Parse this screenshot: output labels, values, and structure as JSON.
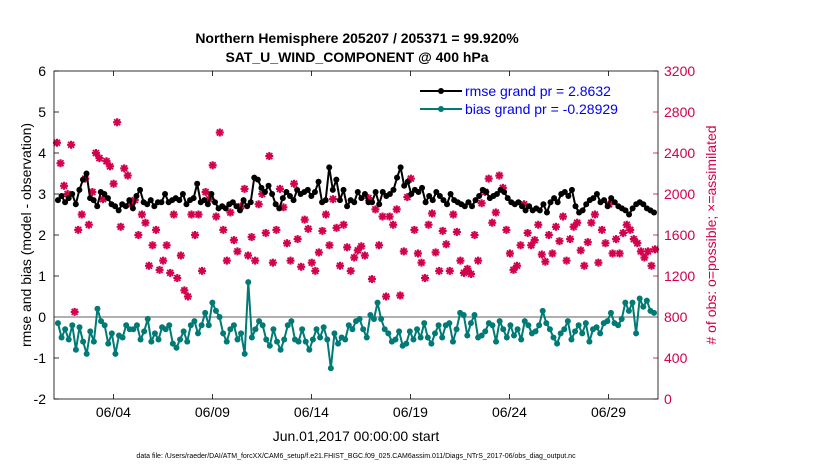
{
  "chart_data": {
    "type": "line",
    "title_line1": "Northern Hemisphere 205207 / 205371 = 99.920%",
    "title_line2": "SAT_U_WIND_COMPONENT @ 400 hPa",
    "ylabel_left": "rmse and bias (model - observation)",
    "ylabel_right": "# of obs: o=possible; ×=assimilated",
    "xlabel": "Jun.01,2017 00:00:00 start",
    "footer": "data file: /Users/raeder/DAI/ATM_forcXX/CAM6_setup/f.e21.FHIST_BGC.f09_025.CAM6assim.011/Diags_NTrS_2017-06/obs_diag_output.nc",
    "ylim_left": [
      -2,
      6
    ],
    "yticks_left": [
      "-2",
      "-1",
      "0",
      "1",
      "2",
      "3",
      "4",
      "5",
      "6"
    ],
    "ylim_right": [
      0,
      3200
    ],
    "yticks_right": [
      "0",
      "400",
      "800",
      "1200",
      "1600",
      "2000",
      "2400",
      "2800",
      "3200"
    ],
    "xlim_days": [
      0,
      30.5
    ],
    "xtick_days": [
      3,
      8,
      13,
      18,
      23,
      28
    ],
    "xtick_labels": [
      "06/04",
      "06/09",
      "06/14",
      "06/19",
      "06/24",
      "06/29"
    ],
    "x_step_days": 0.25,
    "series": [
      {
        "name": "rmse grand pr = 2.8632",
        "color": "#000000",
        "values": [
          2.85,
          2.95,
          2.8,
          2.9,
          3.0,
          2.75,
          3.1,
          3.35,
          3.5,
          2.9,
          2.85,
          2.7,
          3.05,
          3.0,
          2.9,
          2.75,
          2.7,
          2.6,
          2.75,
          2.7,
          2.85,
          2.65,
          2.95,
          3.1,
          2.8,
          2.75,
          2.85,
          2.7,
          2.8,
          2.8,
          3.0,
          2.8,
          2.85,
          2.9,
          2.85,
          3.0,
          2.75,
          2.85,
          2.9,
          3.25,
          2.8,
          2.85,
          2.75,
          3.0,
          2.8,
          2.65,
          2.7,
          2.65,
          2.75,
          2.8,
          2.7,
          2.6,
          2.85,
          2.7,
          2.8,
          3.4,
          3.35,
          3.15,
          3.05,
          3.2,
          3.0,
          2.75,
          2.65,
          2.9,
          3.05,
          2.95,
          2.85,
          3.1,
          3.0,
          3.05,
          3.1,
          2.95,
          3.05,
          3.3,
          2.8,
          2.85,
          3.65,
          3.1,
          3.35,
          2.85,
          3.1,
          2.7,
          2.85,
          2.8,
          3.05,
          2.9,
          3.0,
          2.8,
          2.8,
          3.05,
          2.75,
          3.05,
          2.95,
          3.0,
          3.1,
          3.4,
          3.65,
          3.2,
          3.3,
          3.0,
          3.1,
          3.05,
          3.15,
          2.8,
          2.95,
          2.85,
          3.05,
          2.95,
          2.85,
          2.75,
          3.0,
          2.85,
          2.8,
          2.75,
          2.7,
          2.8,
          2.7,
          2.85,
          2.95,
          3.1,
          3.05,
          2.9,
          2.95,
          3.0,
          3.1,
          3.05,
          2.9,
          2.8,
          2.75,
          2.8,
          2.7,
          2.6,
          2.7,
          2.6,
          2.65,
          2.6,
          2.75,
          2.55,
          2.8,
          2.9,
          2.8,
          3.0,
          3.05,
          2.95,
          3.1,
          2.7,
          2.55,
          2.6,
          2.75,
          2.85,
          2.9,
          3.0,
          2.8,
          2.85,
          2.7,
          2.9,
          2.8,
          2.7,
          2.65,
          2.6,
          2.5,
          2.65,
          2.75,
          2.8,
          2.75,
          2.65,
          2.6,
          2.55
        ]
      },
      {
        "name": "bias grand pr = -0.28929",
        "color": "#007a75",
        "values": [
          -0.15,
          -0.5,
          -0.3,
          -0.55,
          -0.2,
          -0.8,
          -0.25,
          -0.6,
          -0.9,
          -0.35,
          -0.6,
          0.2,
          -0.1,
          -0.2,
          -0.65,
          -0.4,
          -0.9,
          -0.45,
          -0.5,
          -0.2,
          -0.3,
          -0.3,
          -0.2,
          -0.55,
          -0.35,
          -0.05,
          -0.6,
          -0.4,
          -0.55,
          -0.25,
          -0.3,
          -0.2,
          -0.65,
          -0.75,
          -0.55,
          -0.35,
          -0.6,
          -0.2,
          -0.1,
          -0.4,
          -0.2,
          0.1,
          -0.2,
          0.35,
          0.15,
          0.0,
          -0.4,
          -0.6,
          -0.3,
          -0.2,
          -0.55,
          -0.4,
          -0.9,
          0.85,
          -0.5,
          -0.3,
          -0.1,
          -0.2,
          -0.55,
          -0.7,
          -0.3,
          -0.6,
          -0.8,
          -0.55,
          -0.2,
          -0.1,
          -0.55,
          -0.6,
          -0.3,
          -0.6,
          -0.8,
          -0.55,
          -0.3,
          -0.5,
          -0.25,
          -0.55,
          -1.25,
          -0.4,
          -0.65,
          -0.5,
          -0.55,
          -0.2,
          -0.3,
          -0.1,
          -0.05,
          -0.3,
          -0.5,
          0.05,
          -0.05,
          0.35,
          -0.05,
          -0.3,
          -0.4,
          -0.6,
          -0.55,
          -0.35,
          -0.7,
          -0.65,
          -0.35,
          -0.55,
          -0.3,
          -0.5,
          -0.15,
          -0.5,
          -0.65,
          -0.4,
          -0.2,
          -0.5,
          -0.2,
          -0.15,
          -0.6,
          -0.3,
          0.1,
          0.05,
          -0.45,
          -0.15,
          0.05,
          -0.5,
          -0.45,
          -0.35,
          -0.15,
          -0.2,
          -0.6,
          -0.1,
          -0.3,
          -0.5,
          -0.2,
          -0.45,
          -0.3,
          -0.55,
          -0.1,
          -0.2,
          -0.4,
          -0.35,
          -0.2,
          0.15,
          -0.15,
          -0.3,
          -0.5,
          -0.65,
          -0.4,
          -0.3,
          -0.1,
          -0.55,
          -0.35,
          -0.2,
          -0.4,
          -0.15,
          -0.6,
          -0.3,
          -0.25,
          -0.4,
          -0.15,
          -0.1,
          0.1,
          -0.15,
          -0.2,
          -0.05,
          0.35,
          0.15,
          0.35,
          -0.4,
          0.45,
          0.25,
          0.4,
          0.15,
          0.1
        ]
      }
    ],
    "possible": {
      "name": "possible",
      "color": "#d2004d",
      "values": []
    },
    "assimilated": {
      "name": "assimilated",
      "color": "#d2004d",
      "values": [
        2500,
        2300,
        2080,
        2000,
        2480,
        850,
        1650,
        1800,
        2150,
        1700,
        2020,
        2400,
        2350,
        1950,
        2320,
        2270,
        2100,
        2700,
        1680,
        2250,
        2180,
        1900,
        1940,
        1600,
        1800,
        1720,
        1300,
        1500,
        1650,
        1260,
        1350,
        1500,
        1230,
        1800,
        1180,
        1400,
        1060,
        1000,
        1800,
        1600,
        1800,
        1250,
        2020,
        1950,
        2280,
        1780,
        2600,
        1650,
        1350,
        1820,
        1550,
        1440,
        1880,
        2050,
        1400,
        1580,
        1350,
        1900,
        2000,
        1620,
        2370,
        1330,
        1650,
        2050,
        1870,
        1520,
        1350,
        2100,
        1560,
        1290,
        1750,
        1660,
        1330,
        1250,
        1430,
        1640,
        1800,
        1500,
        1950,
        1670,
        1300,
        1700,
        1480,
        1250,
        1380,
        1450,
        1490,
        1400,
        1960,
        1170,
        1850,
        1500,
        1780,
        1000,
        1780,
        1700,
        1850,
        1010,
        1440,
        1970,
        2150,
        1650,
        1420,
        1330,
        1180,
        1700,
        1810,
        1430,
        1250,
        1640,
        1510,
        1250,
        1800,
        1630,
        1350,
        1230,
        1270,
        1220,
        1600,
        1350,
        1910,
        2020,
        2150,
        1720,
        1820,
        2180,
        2060,
        1650,
        1420,
        1260,
        1300,
        1500,
        1900,
        1620,
        1500,
        1550,
        1700,
        1410,
        1340,
        1600,
        1420,
        1680,
        1540,
        1780,
        1350,
        1560,
        1680,
        1720,
        1450,
        1300,
        1530,
        1720,
        1800,
        1330,
        1650,
        1520,
        1900,
        1420,
        1560,
        1420,
        1620,
        1700,
        1650,
        1560,
        1520,
        1440,
        1380,
        1440,
        1300,
        1460
      ]
    }
  }
}
